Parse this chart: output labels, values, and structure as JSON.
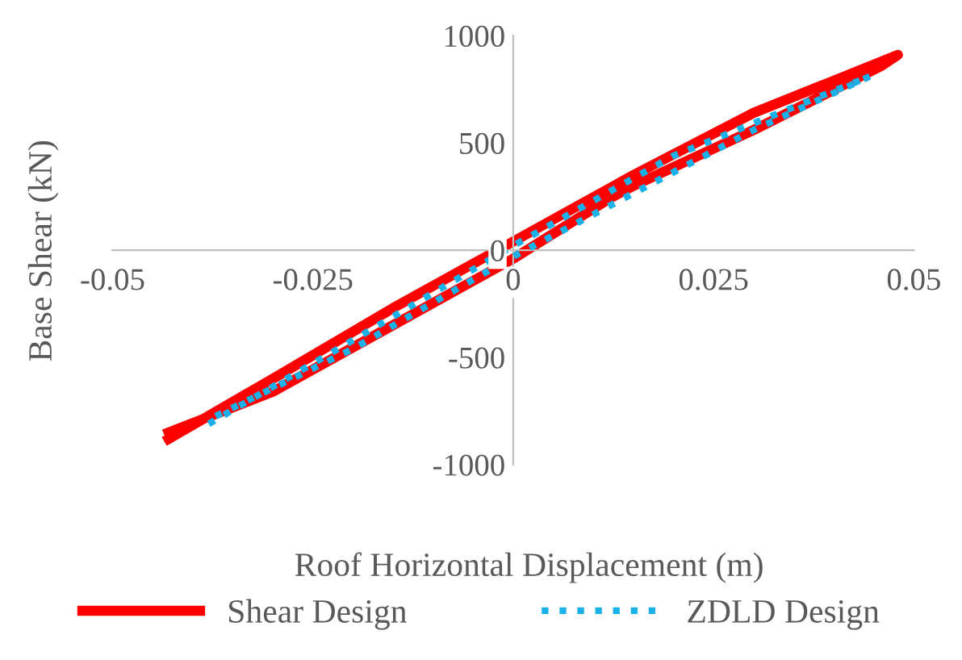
{
  "chart_data": {
    "type": "line",
    "xlabel": "Roof Horizontal Displacement (m)",
    "ylabel": "Base Shear (kN)",
    "xlim": [
      -0.05,
      0.05
    ],
    "xticks": [
      -0.05,
      -0.025,
      0,
      0.025,
      0.05
    ],
    "ylim": [
      -1000,
      1000
    ],
    "yticks": [
      -1000,
      -500,
      0,
      500,
      1000
    ],
    "grid": false,
    "legend": "bottom",
    "marker": "none",
    "series": [
      {
        "name": "Shear Design",
        "color": "#ff0000",
        "line_style": "solid",
        "x": [
          -0.043,
          -0.03,
          -0.015,
          0,
          0.015,
          0.03,
          0.048,
          0.046,
          0.03,
          0.015,
          0.012,
          0,
          -0.015,
          -0.03,
          -0.043
        ],
        "values": [
          -880,
          -600,
          -270,
          40,
          350,
          640,
          910,
          860,
          560,
          300,
          240,
          -40,
          -350,
          -660,
          -850
        ]
      },
      {
        "name": "ZDLD Design",
        "color": "#1ab0e8",
        "line_style": "dotted",
        "x": [
          -0.038,
          -0.02,
          0,
          0.02,
          0.0445,
          0.03,
          0,
          -0.02,
          -0.038
        ],
        "values": [
          -810,
          -420,
          20,
          440,
          810,
          560,
          -30,
          -460,
          -790
        ]
      }
    ]
  }
}
